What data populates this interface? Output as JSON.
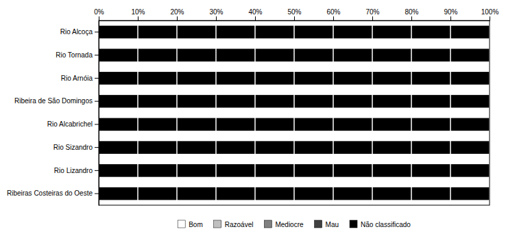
{
  "chart_data": {
    "type": "bar",
    "orientation": "horizontal",
    "stacked": true,
    "categories": [
      "Rio Alcoça",
      "Rio Tornada",
      "Rio Arnóia",
      "Ribeira de São Domingos",
      "Rio Alcabrichel",
      "Rio Sizandro",
      "Rio Lizandro",
      "Ribeiras Costeiras do Oeste"
    ],
    "series": [
      {
        "name": "Bom",
        "color": "#ffffff",
        "values": [
          0,
          0,
          0,
          0,
          0,
          0,
          0,
          0
        ]
      },
      {
        "name": "Razoável",
        "color": "#c0c0c0",
        "values": [
          0,
          0,
          0,
          0,
          0,
          0,
          0,
          0
        ]
      },
      {
        "name": "Mediocre",
        "color": "#808080",
        "values": [
          0,
          0,
          0,
          0,
          0,
          0,
          0,
          0
        ]
      },
      {
        "name": "Mau",
        "color": "#404040",
        "values": [
          0,
          0,
          0,
          0,
          0,
          0,
          0,
          0
        ]
      },
      {
        "name": "Não classificado",
        "color": "#000000",
        "values": [
          100,
          100,
          100,
          100,
          100,
          100,
          100,
          100
        ]
      }
    ],
    "xlim": [
      0,
      100
    ],
    "xticks": [
      {
        "value": 0,
        "label": "0%"
      },
      {
        "value": 10,
        "label": "10%"
      },
      {
        "value": 20,
        "label": "20%"
      },
      {
        "value": 30,
        "label": "30%"
      },
      {
        "value": 40,
        "label": "40%"
      },
      {
        "value": 50,
        "label": "50%"
      },
      {
        "value": 60,
        "label": "60%"
      },
      {
        "value": 70,
        "label": "70%"
      },
      {
        "value": 80,
        "label": "80%"
      },
      {
        "value": 90,
        "label": "90%"
      },
      {
        "value": 100,
        "label": "100%"
      }
    ],
    "grid": true,
    "legend": "bottom"
  }
}
